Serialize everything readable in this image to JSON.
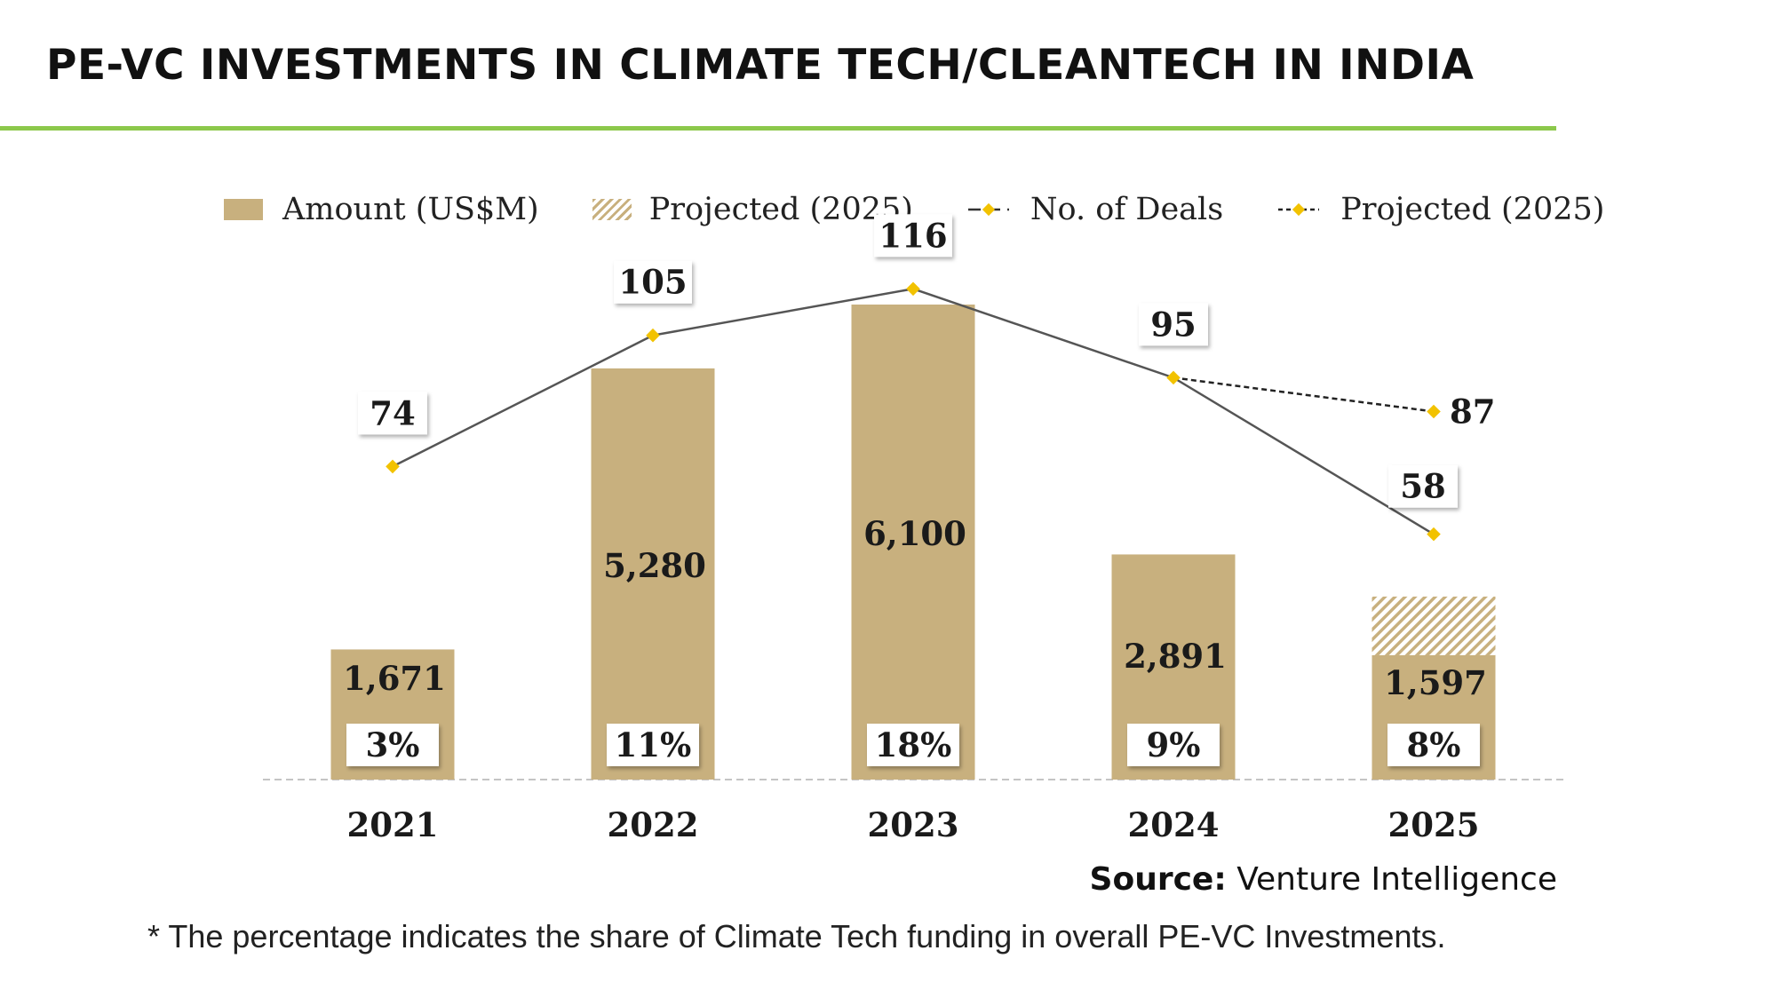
{
  "title": "PE-VC INVESTMENTS IN CLIMATE TECH/CLEANTECH IN INDIA",
  "legend": {
    "amount": "Amount (US$M)",
    "projected_amount": "Projected (2025)",
    "deals": "No. of Deals",
    "projected_deals": "Projected (2025)"
  },
  "colors": {
    "bar": "#c8b07e",
    "line": "#555555",
    "marker": "#f2c200",
    "accent_rule": "#8cc84b"
  },
  "chart_data": {
    "type": "bar",
    "categories": [
      "2021",
      "2022",
      "2023",
      "2024",
      "2025"
    ],
    "series": [
      {
        "name": "Amount (US$M)",
        "values": [
          1671,
          5280,
          6100,
          2891,
          1597
        ],
        "value_labels": [
          "1,671",
          "5,280",
          "6,100",
          "2,891",
          "1,597"
        ]
      },
      {
        "name": "No. of Deals",
        "type": "line",
        "values": [
          74,
          105,
          116,
          95,
          58
        ]
      }
    ],
    "projected": {
      "label": "Projected (2025)",
      "category": "2025",
      "amount_value": 2350,
      "deals_from": 95,
      "deals_to": 87
    },
    "share_labels": [
      "3%",
      "11%",
      "18%",
      "9%",
      "8%"
    ],
    "ylim_amount": [
      0,
      6100
    ],
    "ylim_deals": [
      0,
      136
    ],
    "grid": false,
    "legend_position": "top"
  },
  "source": {
    "label": "Source:",
    "value": "Venture Intelligence"
  },
  "footnote": "* The percentage indicates the share of Climate Tech funding in overall PE-VC Investments."
}
